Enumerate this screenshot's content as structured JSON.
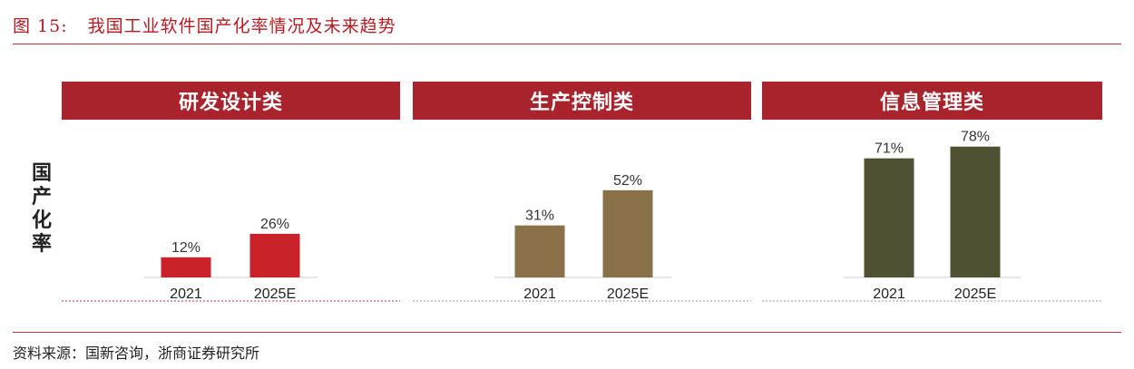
{
  "figure": {
    "number": "图 15:",
    "title": "我国工业软件国产化率情况及未来趋势"
  },
  "y_axis_label": [
    "国",
    "产",
    "化",
    "率"
  ],
  "source": "资料来源：国新咨询，浙商证券研究所",
  "colors": {
    "header_bg": "#a8232c",
    "title_red": "#b81c22",
    "bar_design": "#c92228",
    "bar_control": "#8b7149",
    "bar_info": "#4f5133"
  },
  "chart_data": [
    {
      "type": "bar",
      "title": "研发设计类",
      "categories": [
        "2021",
        "2025E"
      ],
      "values": [
        12,
        26
      ],
      "value_labels": [
        "12%",
        "26%"
      ],
      "ylabel": "国产化率",
      "ylim": [
        0,
        80
      ],
      "color": "#c92228"
    },
    {
      "type": "bar",
      "title": "生产控制类",
      "categories": [
        "2021",
        "2025E"
      ],
      "values": [
        31,
        52
      ],
      "value_labels": [
        "31%",
        "52%"
      ],
      "ylabel": "国产化率",
      "ylim": [
        0,
        80
      ],
      "color": "#8b7149"
    },
    {
      "type": "bar",
      "title": "信息管理类",
      "categories": [
        "2021",
        "2025E"
      ],
      "values": [
        71,
        78
      ],
      "value_labels": [
        "71%",
        "78%"
      ],
      "ylabel": "国产化率",
      "ylim": [
        0,
        80
      ],
      "color": "#4f5133"
    }
  ]
}
